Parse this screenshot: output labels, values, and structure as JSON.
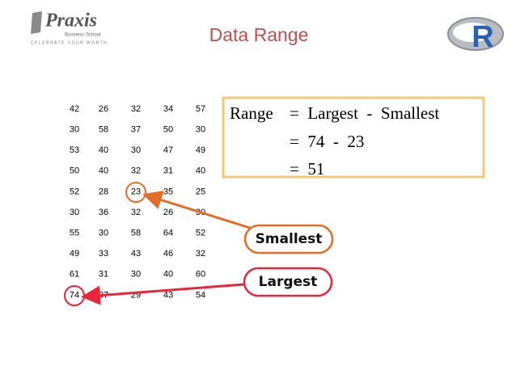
{
  "header": {
    "title": "Data Range"
  },
  "logo": {
    "name": "Praxis",
    "subtitle": "Business School",
    "tagline": "CELEBRATE YOUR WORTH"
  },
  "r_logo": "R",
  "table": {
    "rows": [
      [
        42,
        26,
        32,
        34,
        57
      ],
      [
        30,
        58,
        37,
        50,
        30
      ],
      [
        53,
        40,
        30,
        47,
        49
      ],
      [
        50,
        40,
        32,
        31,
        40
      ],
      [
        52,
        28,
        23,
        35,
        25
      ],
      [
        30,
        36,
        32,
        26,
        30
      ],
      [
        55,
        30,
        58,
        64,
        52
      ],
      [
        49,
        33,
        43,
        46,
        32
      ],
      [
        61,
        31,
        30,
        40,
        60
      ],
      [
        74,
        37,
        29,
        43,
        54
      ]
    ]
  },
  "formula": {
    "lhs": "Range",
    "lines": [
      "=  Largest  -  Smallest",
      "=  74  -  23",
      "=  51"
    ]
  },
  "callouts": {
    "smallest": "Smallest",
    "largest": "Largest"
  }
}
